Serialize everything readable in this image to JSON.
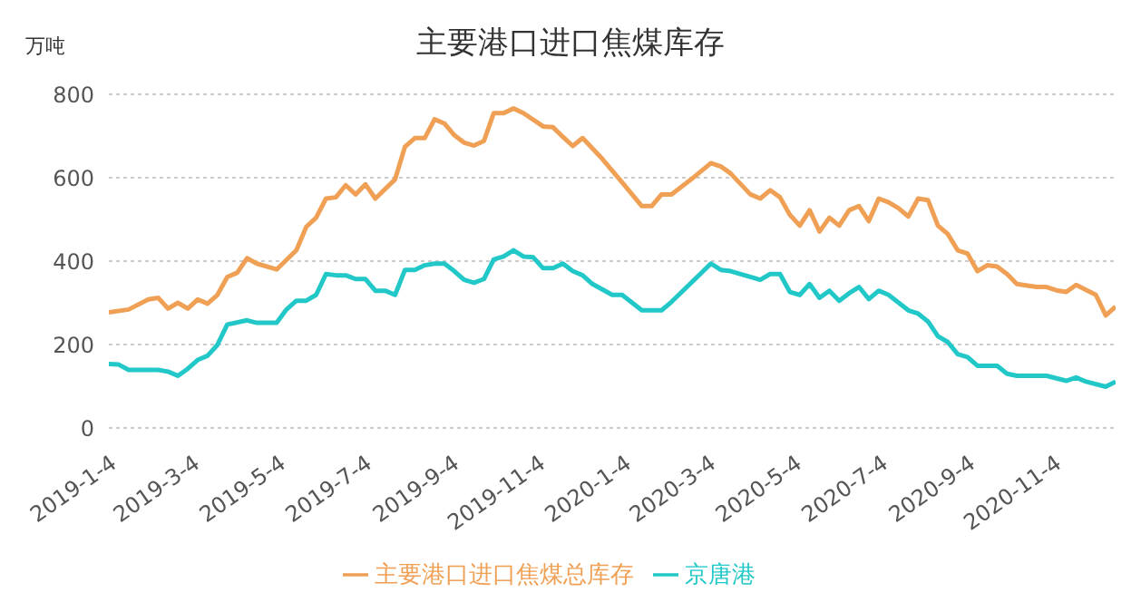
{
  "chart_data": {
    "type": "line",
    "title": "主要港口进口焦煤库存",
    "ylabel": "万吨",
    "xlim": [
      "2019-01-04",
      "2020-12-18"
    ],
    "xticks": [
      {
        "value": "2019-01-04",
        "label": "2019-1-4"
      },
      {
        "value": "2019-03-04",
        "label": "2019-3-4"
      },
      {
        "value": "2019-05-04",
        "label": "2019-5-4"
      },
      {
        "value": "2019-07-04",
        "label": "2019-7-4"
      },
      {
        "value": "2019-09-04",
        "label": "2019-9-4"
      },
      {
        "value": "2019-11-04",
        "label": "2019-11-4"
      },
      {
        "value": "2020-01-04",
        "label": "2020-1-4"
      },
      {
        "value": "2020-03-04",
        "label": "2020-3-4"
      },
      {
        "value": "2020-05-04",
        "label": "2020-5-4"
      },
      {
        "value": "2020-07-04",
        "label": "2020-7-4"
      },
      {
        "value": "2020-09-04",
        "label": "2020-9-4"
      },
      {
        "value": "2020-11-04",
        "label": "2020-11-4"
      }
    ],
    "ylim": [
      0,
      800
    ],
    "yticks": [
      0,
      200,
      400,
      600,
      800
    ],
    "grid": "y",
    "legend": "bottom",
    "marker": "none",
    "line_style": "solid",
    "series": [
      {
        "name": "京唐港",
        "color": "#22c8c8",
        "x": [
          "2019-01-04",
          "2019-01-11",
          "2019-01-18",
          "2019-02-08",
          "2019-02-15",
          "2019-02-22",
          "2019-03-01",
          "2019-03-08",
          "2019-03-15",
          "2019-03-22",
          "2019-03-29",
          "2019-04-12",
          "2019-04-19",
          "2019-05-03",
          "2019-05-10",
          "2019-05-17",
          "2019-05-24",
          "2019-05-31",
          "2019-06-07",
          "2019-06-14",
          "2019-06-21",
          "2019-06-28",
          "2019-07-05",
          "2019-07-12",
          "2019-07-19",
          "2019-07-26",
          "2019-08-02",
          "2019-08-09",
          "2019-08-16",
          "2019-08-23",
          "2019-08-30",
          "2019-09-06",
          "2019-09-13",
          "2019-09-20",
          "2019-09-27",
          "2019-10-04",
          "2019-10-11",
          "2019-10-18",
          "2019-10-25",
          "2019-11-01",
          "2019-11-08",
          "2019-11-15",
          "2019-11-22",
          "2019-11-29",
          "2019-12-06",
          "2019-12-13",
          "2019-12-27",
          "2020-01-03",
          "2020-01-17",
          "2020-01-31",
          "2020-02-07",
          "2020-03-06",
          "2020-03-13",
          "2020-03-20",
          "2020-04-10",
          "2020-04-17",
          "2020-04-24",
          "2020-05-01",
          "2020-05-08",
          "2020-05-15",
          "2020-05-22",
          "2020-05-29",
          "2020-06-05",
          "2020-06-12",
          "2020-06-19",
          "2020-06-26",
          "2020-07-03",
          "2020-07-10",
          "2020-07-24",
          "2020-07-31",
          "2020-08-07",
          "2020-08-14",
          "2020-08-21",
          "2020-08-28",
          "2020-09-04",
          "2020-09-11",
          "2020-09-25",
          "2020-10-02",
          "2020-10-09",
          "2020-10-30",
          "2020-11-13",
          "2020-11-20",
          "2020-11-27",
          "2020-12-11",
          "2020-12-18"
        ],
        "values": [
          153,
          152,
          139,
          139,
          135,
          125,
          142,
          163,
          173,
          199,
          248,
          258,
          252,
          252,
          284,
          305,
          305,
          319,
          369,
          366,
          366,
          357,
          357,
          329,
          329,
          319,
          379,
          379,
          390,
          394,
          394,
          376,
          355,
          348,
          357,
          404,
          411,
          426,
          411,
          409,
          383,
          383,
          394,
          376,
          366,
          345,
          319,
          319,
          282,
          282,
          302,
          394,
          379,
          376,
          355,
          369,
          369,
          326,
          319,
          345,
          312,
          329,
          305,
          323,
          338,
          309,
          329,
          319,
          282,
          274,
          255,
          220,
          206,
          177,
          170,
          149,
          149,
          130,
          125,
          125,
          113,
          121,
          111,
          99,
          111
        ]
      },
      {
        "name": "主要港口进口焦煤总库存",
        "color": "#f0a055",
        "x": [
          "2019-01-04",
          "2019-01-18",
          "2019-02-01",
          "2019-02-08",
          "2019-02-15",
          "2019-02-22",
          "2019-03-01",
          "2019-03-08",
          "2019-03-15",
          "2019-03-22",
          "2019-03-29",
          "2019-04-05",
          "2019-04-12",
          "2019-04-19",
          "2019-05-03",
          "2019-05-17",
          "2019-05-24",
          "2019-05-31",
          "2019-06-07",
          "2019-06-14",
          "2019-06-21",
          "2019-06-28",
          "2019-07-05",
          "2019-07-12",
          "2019-07-26",
          "2019-08-02",
          "2019-08-09",
          "2019-08-16",
          "2019-08-23",
          "2019-08-30",
          "2019-09-06",
          "2019-09-13",
          "2019-09-20",
          "2019-09-27",
          "2019-10-04",
          "2019-10-11",
          "2019-10-18",
          "2019-10-25",
          "2019-11-08",
          "2019-11-15",
          "2019-11-22",
          "2019-11-29",
          "2019-12-06",
          "2019-12-20",
          "2020-01-03",
          "2020-01-17",
          "2020-01-24",
          "2020-01-31",
          "2020-02-07",
          "2020-02-21",
          "2020-03-06",
          "2020-03-13",
          "2020-03-20",
          "2020-04-03",
          "2020-04-10",
          "2020-04-17",
          "2020-04-24",
          "2020-05-01",
          "2020-05-08",
          "2020-05-15",
          "2020-05-22",
          "2020-05-29",
          "2020-06-05",
          "2020-06-12",
          "2020-06-19",
          "2020-06-26",
          "2020-07-03",
          "2020-07-10",
          "2020-07-17",
          "2020-07-24",
          "2020-07-31",
          "2020-08-07",
          "2020-08-14",
          "2020-08-21",
          "2020-08-28",
          "2020-09-04",
          "2020-09-11",
          "2020-09-18",
          "2020-09-25",
          "2020-10-02",
          "2020-10-09",
          "2020-10-23",
          "2020-10-30",
          "2020-11-06",
          "2020-11-13",
          "2020-11-20",
          "2020-12-04",
          "2020-12-11",
          "2020-12-18"
        ],
        "values": [
          277,
          284,
          308,
          312,
          286,
          300,
          286,
          308,
          298,
          319,
          362,
          372,
          407,
          394,
          380,
          426,
          482,
          504,
          550,
          553,
          582,
          560,
          584,
          550,
          596,
          674,
          695,
          695,
          740,
          730,
          702,
          684,
          677,
          688,
          755,
          755,
          766,
          755,
          723,
          721,
          698,
          676,
          695,
          645,
          589,
          532,
          532,
          560,
          560,
          596,
          635,
          627,
          610,
          560,
          550,
          570,
          553,
          511,
          485,
          522,
          471,
          504,
          485,
          522,
          532,
          496,
          550,
          541,
          527,
          507,
          550,
          546,
          485,
          465,
          426,
          418,
          376,
          390,
          387,
          369,
          345,
          338,
          338,
          330,
          326,
          343,
          319,
          270,
          291
        ]
      }
    ]
  }
}
